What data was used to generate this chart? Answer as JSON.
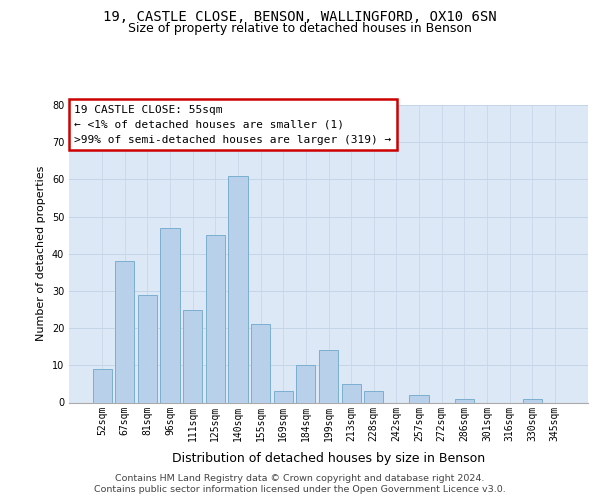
{
  "title_line1": "19, CASTLE CLOSE, BENSON, WALLINGFORD, OX10 6SN",
  "title_line2": "Size of property relative to detached houses in Benson",
  "xlabel": "Distribution of detached houses by size in Benson",
  "ylabel": "Number of detached properties",
  "categories": [
    "52sqm",
    "67sqm",
    "81sqm",
    "96sqm",
    "111sqm",
    "125sqm",
    "140sqm",
    "155sqm",
    "169sqm",
    "184sqm",
    "199sqm",
    "213sqm",
    "228sqm",
    "242sqm",
    "257sqm",
    "272sqm",
    "286sqm",
    "301sqm",
    "316sqm",
    "330sqm",
    "345sqm"
  ],
  "values": [
    9,
    38,
    29,
    47,
    25,
    45,
    61,
    21,
    3,
    10,
    14,
    5,
    3,
    0,
    2,
    0,
    1,
    0,
    0,
    1,
    0
  ],
  "bar_color": "#b8d0ea",
  "bar_edge_color": "#7aaed0",
  "ylim": [
    0,
    80
  ],
  "yticks": [
    0,
    10,
    20,
    30,
    40,
    50,
    60,
    70,
    80
  ],
  "grid_color": "#c5d5e8",
  "background_color": "#dce8f5",
  "annotation_text": "19 CASTLE CLOSE: 55sqm\n← <1% of detached houses are smaller (1)\n>99% of semi-detached houses are larger (319) →",
  "annotation_box_facecolor": "#ffffff",
  "annotation_box_edgecolor": "#cc0000",
  "footer_line1": "Contains HM Land Registry data © Crown copyright and database right 2024.",
  "footer_line2": "Contains public sector information licensed under the Open Government Licence v3.0.",
  "title_fontsize": 10,
  "subtitle_fontsize": 9,
  "ylabel_fontsize": 8,
  "xlabel_fontsize": 9,
  "tick_fontsize": 7,
  "annotation_fontsize": 8,
  "footer_fontsize": 6.8
}
